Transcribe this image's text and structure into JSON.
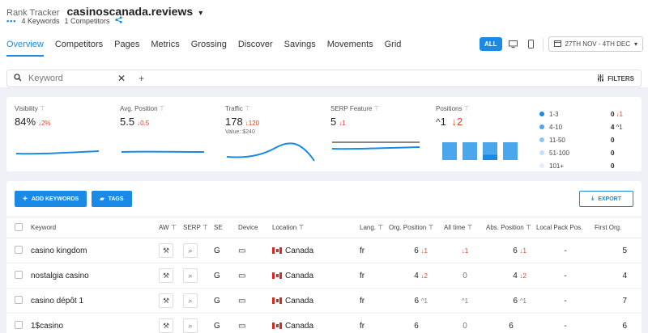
{
  "breadcrumb": {
    "section": "Rank Tracker",
    "project": "casinoscanada.reviews"
  },
  "subline": {
    "keywords": "4 Keywords",
    "competitors": "1 Competitors"
  },
  "tabs": [
    "Overview",
    "Competitors",
    "Pages",
    "Metrics",
    "Grossing",
    "Discover",
    "Savings",
    "Movements",
    "Grid"
  ],
  "controls": {
    "all": "ALL",
    "date": "27TH NOV - 4TH DEC"
  },
  "search": {
    "placeholder": "Keyword",
    "filters": "FILTERS"
  },
  "stats": {
    "visibility": {
      "label": "Visibility",
      "value": "84%",
      "delta": "2%"
    },
    "avg_position": {
      "label": "Avg. Position",
      "value": "5.5",
      "delta": "0.5"
    },
    "traffic": {
      "label": "Traffic",
      "value": "178",
      "delta": "120",
      "sub": "Value: $240"
    },
    "serp": {
      "label": "SERP Feature",
      "value": "5",
      "delta": "1"
    },
    "positions": {
      "label": "Positions",
      "up": "1",
      "down": "2"
    }
  },
  "positions_legend": [
    {
      "range": "1-3",
      "count": "0",
      "delta": "1",
      "color": "#1a8ae6"
    },
    {
      "range": "4-10",
      "count": "4",
      "delta": "1",
      "color": "#4aa7ee"
    },
    {
      "range": "11-50",
      "count": "0",
      "delta": "",
      "color": "#8cc7f3"
    },
    {
      "range": "51-100",
      "count": "0",
      "delta": "",
      "color": "#c4e1f8"
    },
    {
      "range": "101+",
      "count": "0",
      "delta": "",
      "color": "#e6eef5"
    }
  ],
  "actions": {
    "add": "ADD KEYWORDS",
    "tags": "TAGS",
    "export": "EXPORT"
  },
  "columns": {
    "keyword": "Keyword",
    "aw": "AW",
    "serp": "SERP",
    "se": "SE",
    "device": "Device",
    "location": "Location",
    "lang": "Lang.",
    "org": "Org. Position",
    "alltime": "All time",
    "abs": "Abs. Position",
    "local": "Local Pack Pos.",
    "first": "First Org."
  },
  "rows": [
    {
      "keyword": "casino kingdom",
      "se": "G",
      "location": "Canada",
      "lang": "fr",
      "org": "6",
      "org_delta": "1",
      "alltime": "",
      "alltime_delta": "1",
      "abs": "6",
      "abs_delta": "1",
      "local": "-",
      "first": "5"
    },
    {
      "keyword": "nostalgia casino",
      "se": "G",
      "location": "Canada",
      "lang": "fr",
      "org": "4",
      "org_delta": "2",
      "alltime": "0",
      "alltime_delta": "",
      "abs": "4",
      "abs_delta": "2",
      "local": "-",
      "first": "4"
    },
    {
      "keyword": "casino dépôt 1",
      "se": "G",
      "location": "Canada",
      "lang": "fr",
      "org": "6",
      "org_delta": "1",
      "alltime": "",
      "alltime_delta": "1",
      "abs": "6",
      "abs_delta": "1",
      "local": "-",
      "first": "7"
    },
    {
      "keyword": "1$casino",
      "se": "G",
      "location": "Canada",
      "lang": "fr",
      "org": "6",
      "org_delta": "",
      "alltime": "0",
      "alltime_delta": "",
      "abs": "6",
      "abs_delta": "",
      "local": "-",
      "first": "6"
    }
  ]
}
